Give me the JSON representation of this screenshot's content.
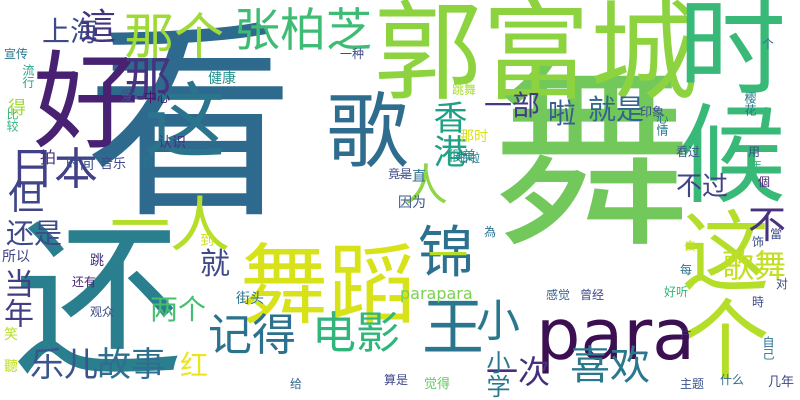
{
  "background_color": "#ffffff",
  "words": [
    {
      "text": "看",
      "color": "#2e6a8e"
    },
    {
      "text": "舞",
      "color": "#73c85c"
    },
    {
      "text": "还",
      "color": "#2a7f8e"
    },
    {
      "text": "郭富城",
      "color": "#8dd340"
    },
    {
      "text": "时候",
      "color": "#38b977"
    },
    {
      "text": "好",
      "color": "#482173"
    },
    {
      "text": "这",
      "color": "#2b748e"
    },
    {
      "text": "舞蹈",
      "color": "#d7e219"
    },
    {
      "text": "歌",
      "color": "#2e6d8e"
    },
    {
      "text": "这个",
      "color": "#b5de2b"
    },
    {
      "text": "para",
      "color": "#3b0f52"
    },
    {
      "text": "那个",
      "color": "#a0da39"
    },
    {
      "text": "张柏芝",
      "color": "#3ebc73"
    },
    {
      "text": "记得",
      "color": "#2c728e"
    },
    {
      "text": "电影",
      "color": "#30b67a"
    },
    {
      "text": "王",
      "color": "#2a768e"
    },
    {
      "text": "锦",
      "color": "#2c728e"
    },
    {
      "text": "日本",
      "color": "#424086"
    },
    {
      "text": "上海",
      "color": "#3e4a89"
    },
    {
      "text": "這",
      "color": "#453581"
    },
    {
      "text": "那",
      "color": "#46337e"
    },
    {
      "text": "喜欢",
      "color": "#2a788e"
    },
    {
      "text": "故事",
      "color": "#2e6e8e"
    },
    {
      "text": "乐儿",
      "color": "#3a548c"
    },
    {
      "text": "当年",
      "color": "#433d84"
    },
    {
      "text": "还是",
      "color": "#3e4a89"
    },
    {
      "text": "但",
      "color": "#3f4788"
    },
    {
      "text": "就",
      "color": "#3f4889"
    },
    {
      "text": "人",
      "color": "#8ed645"
    },
    {
      "text": "小",
      "color": "#2a788e"
    },
    {
      "text": "香港",
      "color": "#1fa187"
    },
    {
      "text": "一部",
      "color": "#443983"
    },
    {
      "text": "就是",
      "color": "#31668e"
    },
    {
      "text": "啦",
      "color": "#355f8d"
    },
    {
      "text": "两个",
      "color": "#44bf70"
    },
    {
      "text": "歌舞",
      "color": "#c2df23"
    },
    {
      "text": "不过",
      "color": "#414487"
    },
    {
      "text": "一次",
      "color": "#46307e"
    },
    {
      "text": "不",
      "color": "#46327e"
    },
    {
      "text": "红",
      "color": "#ece51b"
    },
    {
      "text": "小学",
      "color": "#2a788e"
    },
    {
      "text": "一人",
      "color": "#b5de2b"
    },
    {
      "text": "一",
      "color": "#b5de2b"
    },
    {
      "text": "parapara",
      "color": "#7ad151"
    },
    {
      "text": "街头",
      "color": "#2c718e"
    },
    {
      "text": "时间",
      "color": "#3b518b"
    },
    {
      "text": "音乐",
      "color": "#3e4989"
    },
    {
      "text": "着",
      "color": "#2c728e"
    },
    {
      "text": "认识",
      "color": "#472f7d"
    },
    {
      "text": "中心",
      "color": "#481668"
    },
    {
      "text": "爱",
      "color": "#3e4c8a"
    },
    {
      "text": "健康",
      "color": "#21908d"
    },
    {
      "text": "一种",
      "color": "#3f4788"
    },
    {
      "text": "宣传",
      "color": "#2a778e"
    },
    {
      "text": "流行",
      "color": "#20a386"
    },
    {
      "text": "比较",
      "color": "#31b57b"
    },
    {
      "text": "得",
      "color": "#a2da37"
    },
    {
      "text": "拍",
      "color": "#46337e"
    },
    {
      "text": "跳",
      "color": "#472f7d"
    },
    {
      "text": "还有",
      "color": "#482475"
    },
    {
      "text": "到",
      "color": "#d2e21b"
    },
    {
      "text": "所以",
      "color": "#414487"
    },
    {
      "text": "观众",
      "color": "#3e4a89"
    },
    {
      "text": "笑",
      "color": "#b5de2b"
    },
    {
      "text": "聽",
      "color": "#c0df25"
    },
    {
      "text": "给",
      "color": "#31688e"
    },
    {
      "text": "竟是",
      "color": "#3e4c8a"
    },
    {
      "text": "一直",
      "color": "#2d708e"
    },
    {
      "text": "因为",
      "color": "#3a548c"
    },
    {
      "text": "很美",
      "color": "#1f9f88"
    },
    {
      "text": "跳舞",
      "color": "#a8db34"
    },
    {
      "text": "那时",
      "color": "#d8e219"
    },
    {
      "text": "啪啦",
      "color": "#2a788e"
    },
    {
      "text": "感觉",
      "color": "#355f8d"
    },
    {
      "text": "曾经",
      "color": "#3f4788"
    },
    {
      "text": "為",
      "color": "#2c728e"
    },
    {
      "text": "去",
      "color": "#c8e020"
    },
    {
      "text": "每",
      "color": "#2c728e"
    },
    {
      "text": "算是",
      "color": "#3e4989"
    },
    {
      "text": "觉得",
      "color": "#63cb5f"
    },
    {
      "text": "主题",
      "color": "#3b528b"
    },
    {
      "text": "什么",
      "color": "#2f6c8e"
    },
    {
      "text": "好听",
      "color": "#35b779"
    },
    {
      "text": "片",
      "color": "#472c7a"
    },
    {
      "text": "印象",
      "color": "#3b518b"
    },
    {
      "text": "看过",
      "color": "#3a548c"
    },
    {
      "text": "心情",
      "color": "#2a788e"
    },
    {
      "text": "個",
      "color": "#482173"
    },
    {
      "text": "時",
      "color": "#3f4889"
    },
    {
      "text": "用",
      "color": "#3e4a89"
    },
    {
      "text": "年",
      "color": "#35b779"
    },
    {
      "text": "饰",
      "color": "#3b518b"
    },
    {
      "text": "當",
      "color": "#3e4989"
    },
    {
      "text": "对",
      "color": "#3e4989"
    },
    {
      "text": "自己",
      "color": "#2c728e"
    },
    {
      "text": "几年",
      "color": "#3f4788"
    },
    {
      "text": "个",
      "color": "#2c728e"
    },
    {
      "text": "樱花",
      "color": "#2a788e"
    }
  ]
}
